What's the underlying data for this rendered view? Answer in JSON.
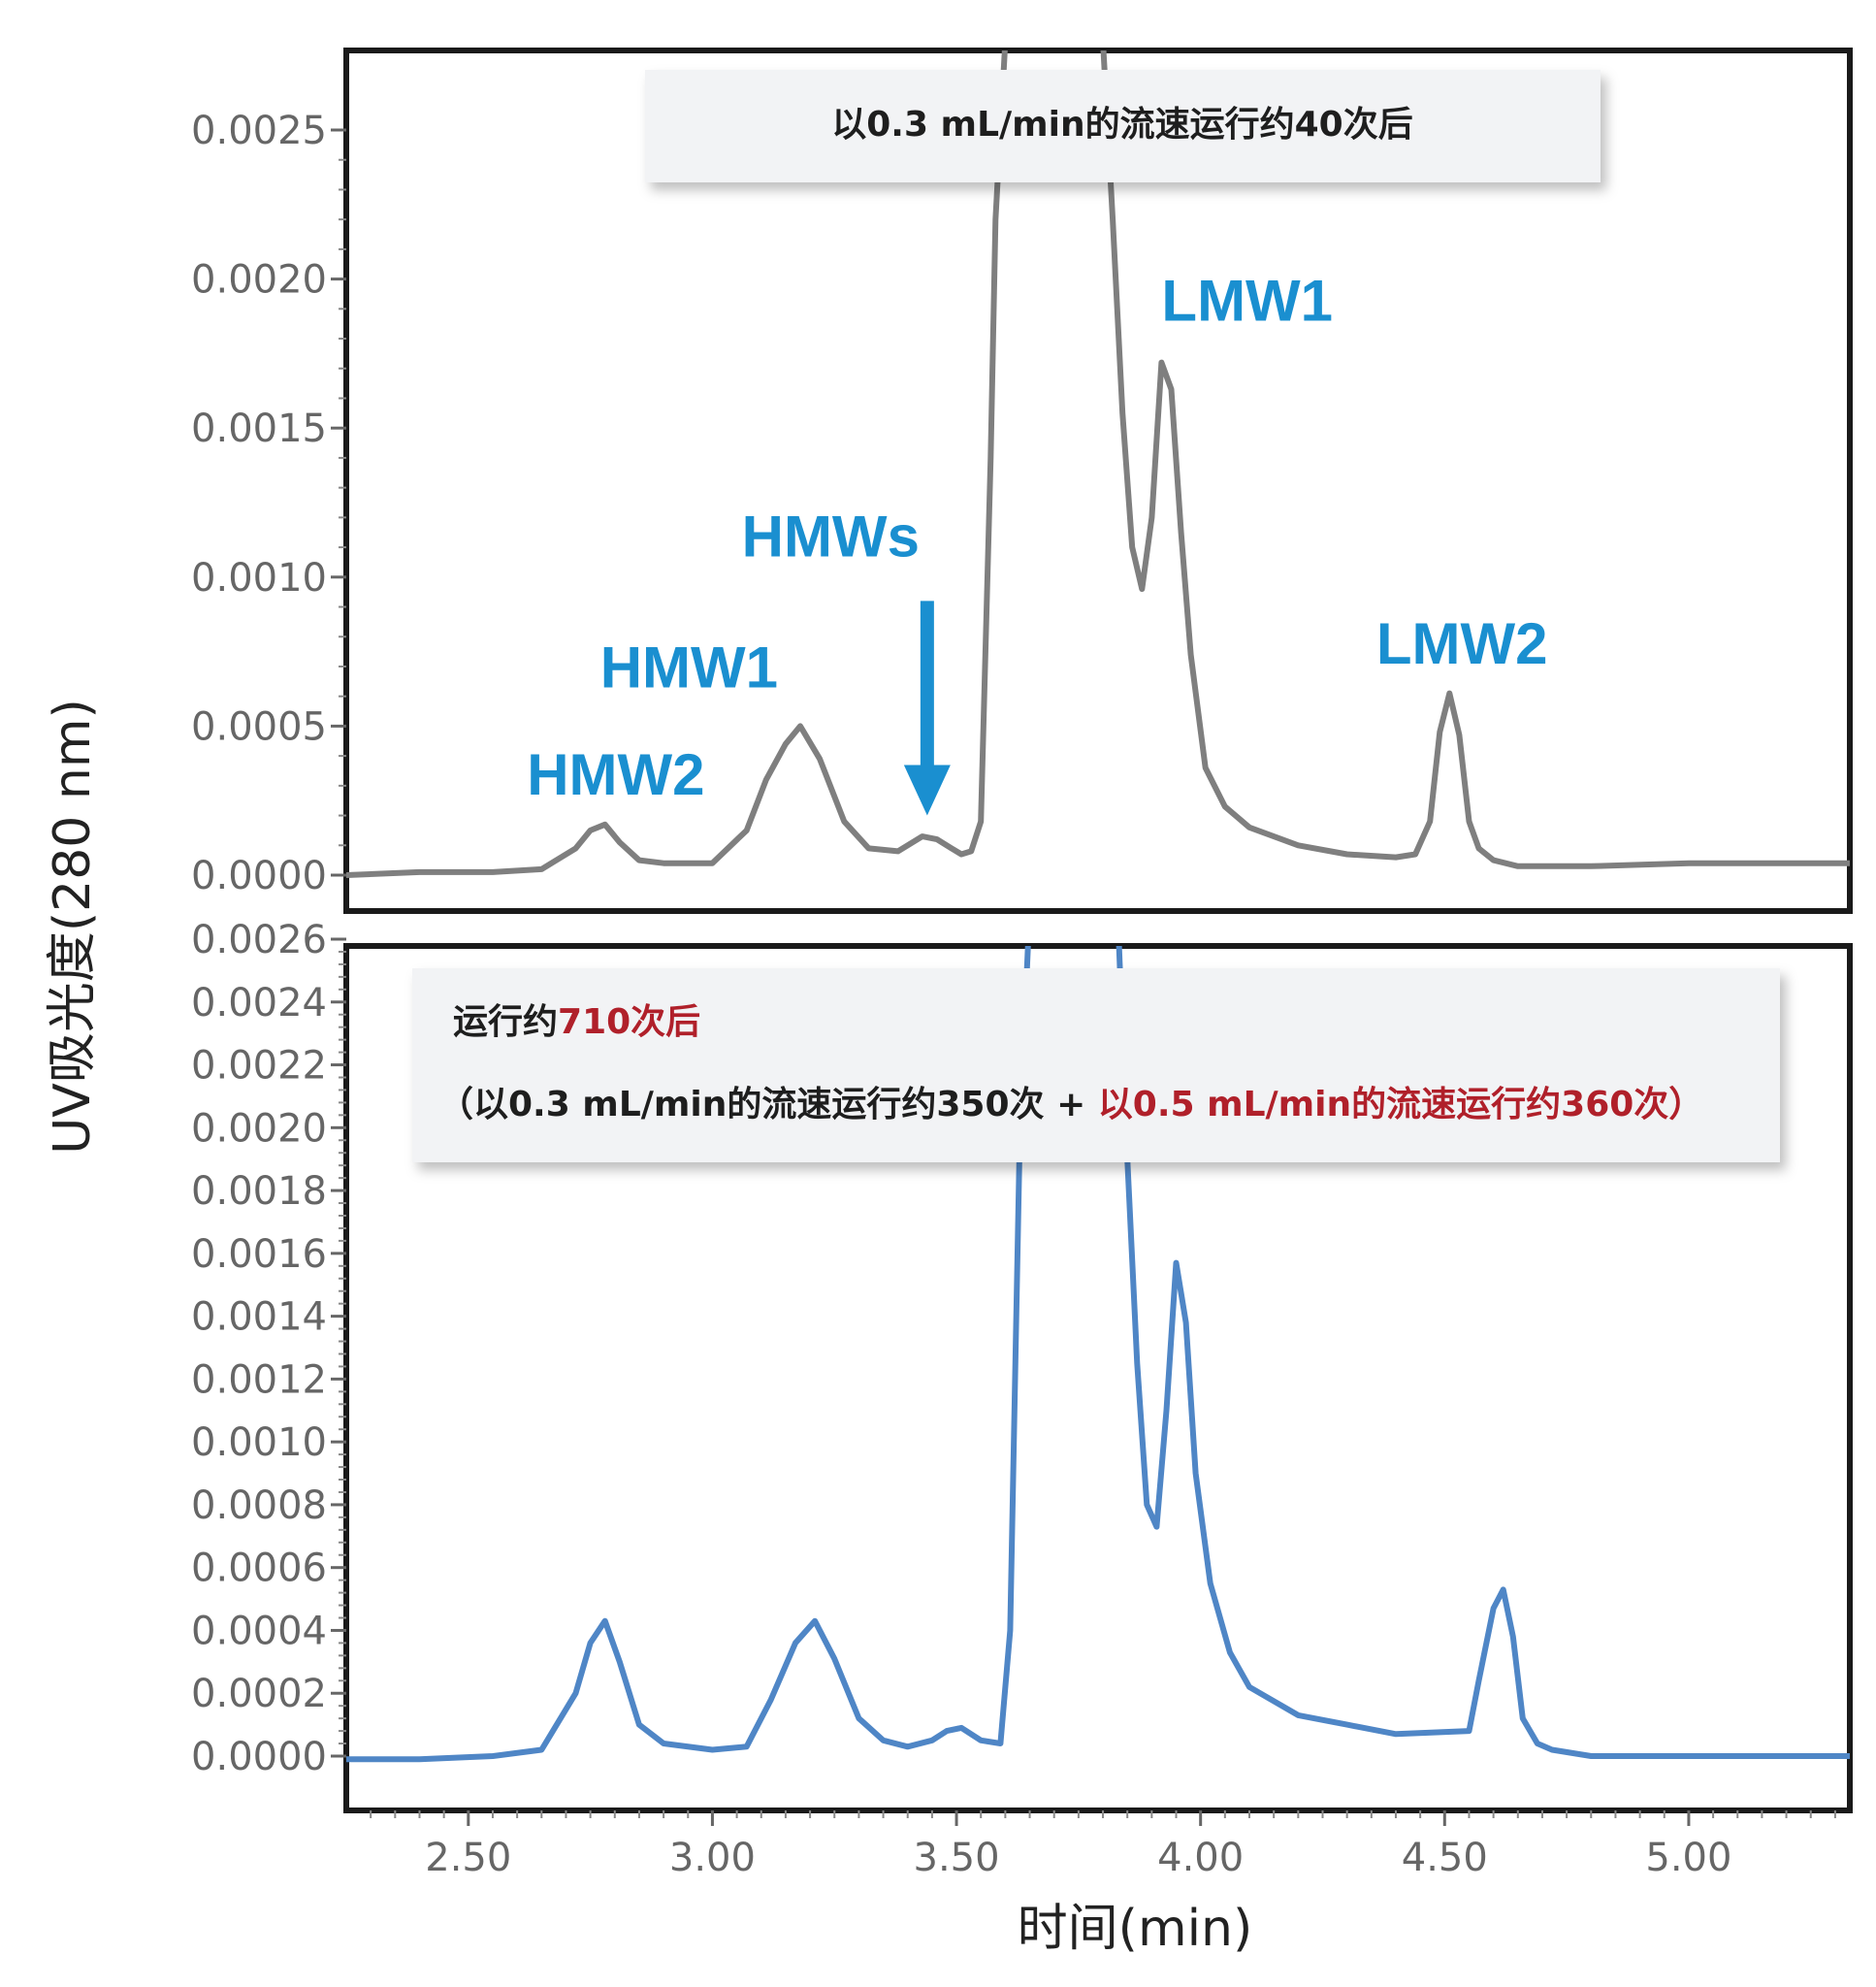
{
  "chart_data": [
    {
      "type": "line",
      "panel": "top",
      "annotation": "以0.3 mL/min的流速运行约40次后",
      "line_color": "#7f7f7f",
      "ylim": [
        0,
        0.0027
      ],
      "xlim": [
        2.25,
        5.33
      ],
      "yticks": [
        "0.0000",
        "0.0005",
        "0.0010",
        "0.0015",
        "0.0020",
        "0.0025"
      ],
      "ytick_values": [
        0,
        0.0005,
        0.001,
        0.0015,
        0.002,
        0.0025
      ],
      "peak_labels": [
        {
          "text": "HMW2",
          "x": 2.62,
          "y": 0.00027
        },
        {
          "text": "HMW1",
          "x": 2.77,
          "y": 0.00063
        },
        {
          "text": "HMWs",
          "x": 3.06,
          "y": 0.00107
        },
        {
          "text": "LMW1",
          "x": 3.92,
          "y": 0.00186
        },
        {
          "text": "LMW2",
          "x": 4.36,
          "y": 0.00071
        }
      ],
      "arrow": {
        "x": 3.44,
        "y_from": 0.00092,
        "y_to": 0.0002
      },
      "x": [
        2.25,
        2.4,
        2.55,
        2.65,
        2.72,
        2.75,
        2.78,
        2.81,
        2.85,
        2.9,
        3.0,
        3.07,
        3.11,
        3.15,
        3.18,
        3.22,
        3.27,
        3.32,
        3.38,
        3.43,
        3.46,
        3.49,
        3.51,
        3.53,
        3.55,
        3.57,
        3.58,
        3.6,
        3.8,
        3.82,
        3.84,
        3.86,
        3.88,
        3.9,
        3.92,
        3.94,
        3.96,
        3.98,
        4.01,
        4.05,
        4.1,
        4.2,
        4.3,
        4.4,
        4.44,
        4.47,
        4.49,
        4.51,
        4.53,
        4.55,
        4.57,
        4.6,
        4.65,
        4.8,
        5.0,
        5.33
      ],
      "y": [
        0.0,
        1e-05,
        1e-05,
        2e-05,
        9e-05,
        0.00015,
        0.00017,
        0.00011,
        5e-05,
        4e-05,
        4e-05,
        0.00015,
        0.00032,
        0.00044,
        0.0005,
        0.00039,
        0.00018,
        9e-05,
        8e-05,
        0.00013,
        0.00012,
        9e-05,
        7e-05,
        8e-05,
        0.00018,
        0.0014,
        0.0022,
        0.0028,
        0.0028,
        0.0022,
        0.00155,
        0.0011,
        0.00096,
        0.0012,
        0.00172,
        0.00163,
        0.00115,
        0.00074,
        0.00036,
        0.00023,
        0.00016,
        0.0001,
        7e-05,
        6e-05,
        7e-05,
        0.00018,
        0.00048,
        0.00061,
        0.00047,
        0.00018,
        9e-05,
        5e-05,
        3e-05,
        3e-05,
        4e-05,
        4e-05
      ]
    },
    {
      "type": "line",
      "panel": "bottom",
      "annotation": {
        "line1_prefix": "运行约",
        "line1_highlight": "710次后",
        "line2_prefix": "（以0.3 mL/min的流速运行约350次 + ",
        "line2_highlight": "以0.5 mL/min的流速运行约360次）"
      },
      "line_color": "#4f86c6",
      "ylim": [
        0,
        0.0026
      ],
      "xlim": [
        2.25,
        5.33
      ],
      "yticks": [
        "0.0000",
        "0.0002",
        "0.0004",
        "0.0006",
        "0.0008",
        "0.0010",
        "0.0012",
        "0.0014",
        "0.0016",
        "0.0018",
        "0.0020",
        "0.0022",
        "0.0024",
        "0.0026"
      ],
      "ytick_values": [
        0,
        0.0002,
        0.0004,
        0.0006,
        0.0008,
        0.001,
        0.0012,
        0.0014,
        0.0016,
        0.0018,
        0.002,
        0.0022,
        0.0024,
        0.0026
      ],
      "x": [
        2.25,
        2.4,
        2.55,
        2.65,
        2.72,
        2.75,
        2.78,
        2.81,
        2.85,
        2.9,
        3.0,
        3.07,
        3.12,
        3.17,
        3.21,
        3.25,
        3.3,
        3.35,
        3.4,
        3.45,
        3.48,
        3.51,
        3.55,
        3.59,
        3.61,
        3.63,
        3.65,
        3.83,
        3.85,
        3.87,
        3.89,
        3.91,
        3.93,
        3.95,
        3.97,
        3.99,
        4.02,
        4.06,
        4.1,
        4.2,
        4.3,
        4.4,
        4.55,
        4.57,
        4.6,
        4.62,
        4.64,
        4.66,
        4.69,
        4.72,
        4.8,
        5.0,
        5.33
      ],
      "y": [
        -1e-05,
        -1e-05,
        0.0,
        2e-05,
        0.0002,
        0.00036,
        0.00043,
        0.0003,
        0.0001,
        4e-05,
        2e-05,
        3e-05,
        0.00018,
        0.00036,
        0.00043,
        0.00031,
        0.00012,
        5e-05,
        3e-05,
        5e-05,
        8e-05,
        9e-05,
        5e-05,
        4e-05,
        0.0004,
        0.002,
        0.0027,
        0.0027,
        0.0019,
        0.00125,
        0.0008,
        0.00073,
        0.0011,
        0.00157,
        0.00138,
        0.0009,
        0.00055,
        0.00033,
        0.00022,
        0.00013,
        0.0001,
        7e-05,
        8e-05,
        0.00024,
        0.00047,
        0.00053,
        0.00038,
        0.00012,
        4e-05,
        2e-05,
        0.0,
        0.0,
        0.0
      ]
    }
  ],
  "xaxis": {
    "xlim": [
      2.25,
      5.33
    ],
    "ticks": [
      "2.50",
      "3.00",
      "3.50",
      "4.00",
      "4.50",
      "5.00"
    ],
    "tick_values": [
      2.5,
      3.0,
      3.5,
      4.0,
      4.5,
      5.0
    ],
    "label": "时间(min)"
  },
  "yaxis_label": "UV吸光度(280 nm)"
}
